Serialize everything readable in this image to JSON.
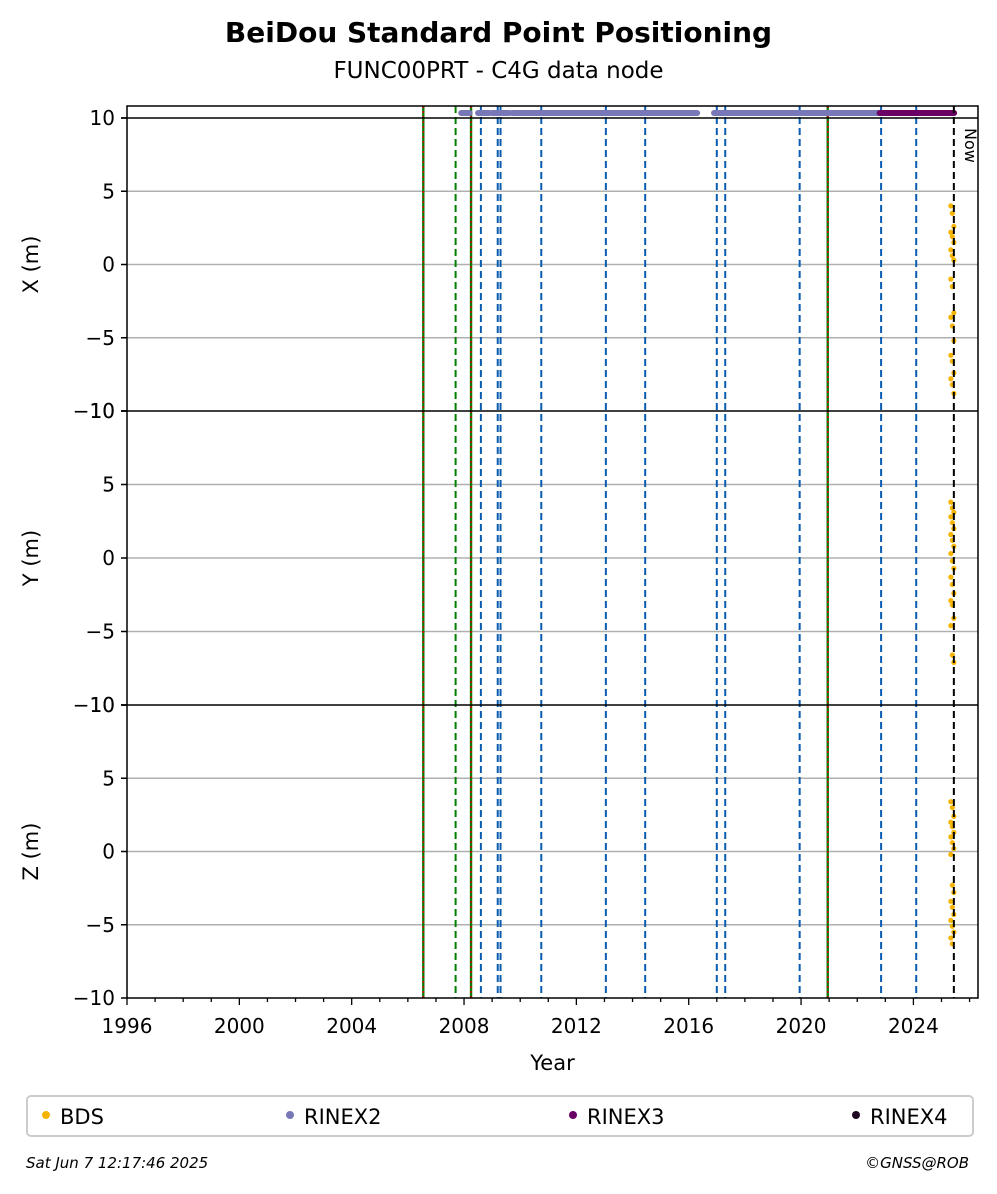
{
  "header": {
    "title": "BeiDou Standard Point Positioning",
    "subtitle": "FUNC00PRT - C4G data node"
  },
  "footer": {
    "timestamp": "Sat Jun  7 12:17:46 2025",
    "credit": "©GNSS@ROB"
  },
  "colors": {
    "BDS": "#f5b400",
    "RINEX2": "#7878b8",
    "RINEX3": "#6a0064",
    "RINEX4": "#1e0820",
    "green_line": "#008000",
    "red_line": "#cc0000",
    "blue_line": "#0a5cb0",
    "grid": "#b0b0b0"
  },
  "legend": [
    {
      "label": "BDS",
      "color_key": "BDS"
    },
    {
      "label": "RINEX2",
      "color_key": "RINEX2"
    },
    {
      "label": "RINEX3",
      "color_key": "RINEX3"
    },
    {
      "label": "RINEX4",
      "color_key": "RINEX4"
    }
  ],
  "chart_data": {
    "type": "scatter",
    "xlabel": "Year",
    "xlim": [
      1996,
      2026.3
    ],
    "xticks": [
      1996,
      2000,
      2004,
      2008,
      2012,
      2016,
      2020,
      2024
    ],
    "now_label": "Now",
    "now_year": 2025.44,
    "panels": [
      {
        "ylabel": "X (m)",
        "ylim": [
          -10,
          10
        ],
        "yticks": [
          -10,
          -5,
          0,
          5,
          10
        ],
        "bds_values": [
          4.0,
          3.5,
          2.6,
          2.2,
          1.9,
          1.5,
          1.0,
          0.6,
          0.3,
          -1.0,
          -1.5,
          -3.3,
          -3.6,
          -4.2,
          -5.2,
          -6.2,
          -6.6,
          -7.4,
          -7.8,
          -8.2,
          -8.8
        ]
      },
      {
        "ylabel": "Y (m)",
        "ylim": [
          -10,
          10
        ],
        "yticks": [
          -10,
          -5,
          0,
          5,
          10
        ],
        "bds_values": [
          3.8,
          3.4,
          3.1,
          2.8,
          2.4,
          2.0,
          1.6,
          1.2,
          0.8,
          0.3,
          -0.2,
          -0.7,
          -1.3,
          -1.8,
          -2.4,
          -2.9,
          -3.2,
          -4.1,
          -4.6,
          -6.6,
          -7.1
        ]
      },
      {
        "ylabel": "Z (m)",
        "ylim": [
          -10,
          10
        ],
        "yticks": [
          -10,
          -5,
          0,
          5,
          10
        ],
        "bds_values": [
          3.4,
          3.0,
          2.4,
          2.0,
          1.7,
          1.3,
          1.0,
          0.6,
          0.2,
          -0.2,
          -2.3,
          -2.8,
          -3.4,
          -3.8,
          -4.3,
          -4.7,
          -5.1,
          -5.5,
          -5.9,
          -6.3
        ]
      }
    ],
    "data_availability": [
      {
        "series": "RINEX2",
        "start": 2007.9,
        "end": 2008.2
      },
      {
        "series": "RINEX2",
        "start": 2008.5,
        "end": 2008.9
      },
      {
        "series": "RINEX2",
        "start": 2009.0,
        "end": 2009.6
      },
      {
        "series": "RINEX2",
        "start": 2009.7,
        "end": 2016.3
      },
      {
        "series": "RINEX2",
        "start": 2016.9,
        "end": 2022.8
      },
      {
        "series": "RINEX3",
        "start": 2022.8,
        "end": 2025.45
      }
    ],
    "event_lines": [
      {
        "year": 2006.55,
        "kind": "green-red"
      },
      {
        "year": 2007.7,
        "kind": "green"
      },
      {
        "year": 2008.25,
        "kind": "green-red"
      },
      {
        "year": 2008.6,
        "kind": "blue"
      },
      {
        "year": 2009.2,
        "kind": "blue"
      },
      {
        "year": 2009.3,
        "kind": "blue"
      },
      {
        "year": 2010.75,
        "kind": "blue"
      },
      {
        "year": 2013.05,
        "kind": "blue"
      },
      {
        "year": 2014.45,
        "kind": "blue"
      },
      {
        "year": 2017.0,
        "kind": "blue"
      },
      {
        "year": 2017.3,
        "kind": "blue"
      },
      {
        "year": 2019.95,
        "kind": "blue"
      },
      {
        "year": 2020.95,
        "kind": "green-red"
      },
      {
        "year": 2022.85,
        "kind": "blue"
      },
      {
        "year": 2024.1,
        "kind": "blue"
      }
    ]
  }
}
